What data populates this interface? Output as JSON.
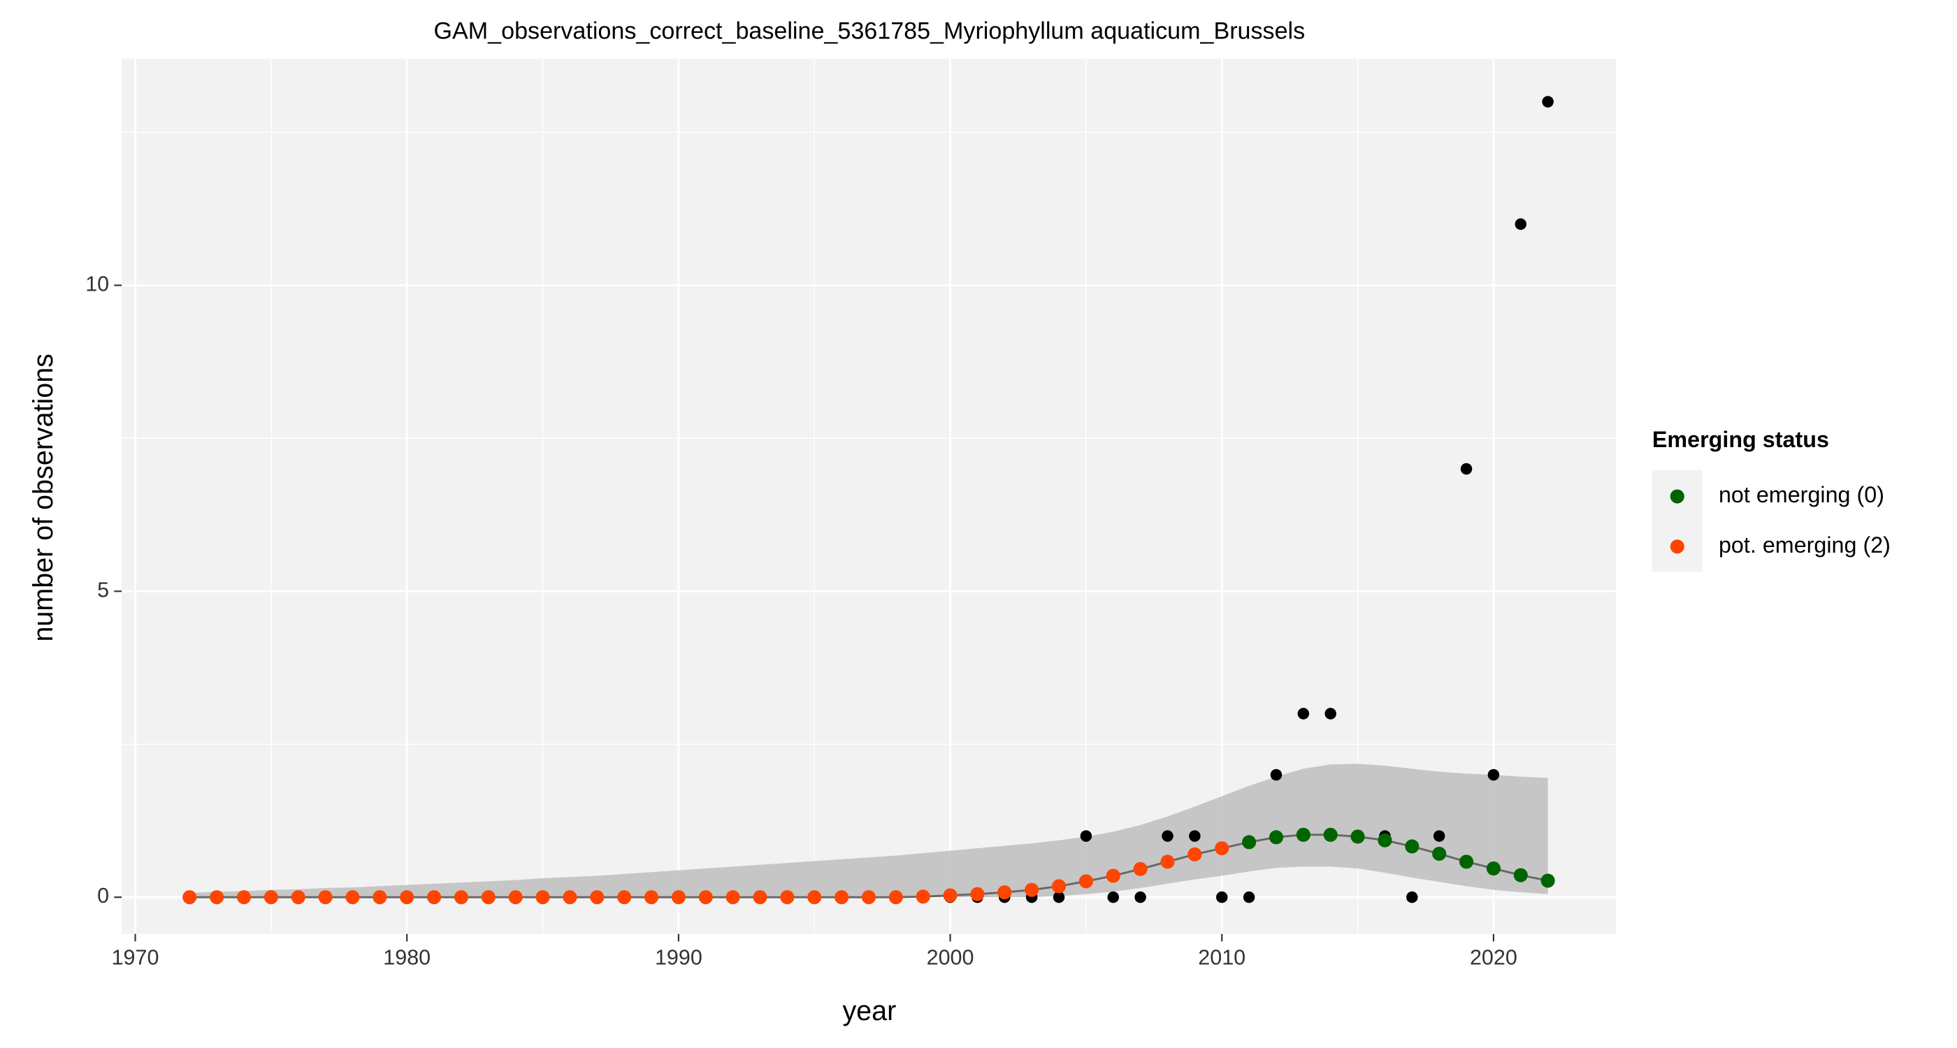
{
  "chart_data": {
    "type": "scatter",
    "title": "GAM_observations_correct_baseline_5361785_Myriophyllum aquaticum_Brussels",
    "x_label": "year",
    "y_label": "number of observations",
    "legend_title": "Emerging status",
    "legend_position": "right",
    "grid": true,
    "xlim": [
      1969.5,
      2024.5
    ],
    "ylim": [
      -0.6,
      13.7
    ],
    "xticks": [
      1970,
      1980,
      1990,
      2000,
      2010,
      2020
    ],
    "yticks": [
      0,
      5,
      10
    ],
    "x": [
      1972,
      1973,
      1974,
      1975,
      1976,
      1977,
      1978,
      1979,
      1980,
      1981,
      1982,
      1983,
      1984,
      1985,
      1986,
      1987,
      1988,
      1989,
      1990,
      1991,
      1992,
      1993,
      1994,
      1995,
      1996,
      1997,
      1998,
      1999,
      2000,
      2001,
      2002,
      2003,
      2004,
      2005,
      2006,
      2007,
      2008,
      2009,
      2010,
      2011,
      2012,
      2013,
      2014,
      2015,
      2016,
      2017,
      2018,
      2019,
      2020,
      2021,
      2022
    ],
    "observed_color": "#000000",
    "observed": [
      0,
      0,
      0,
      0,
      0,
      0,
      0,
      0,
      0,
      0,
      0,
      0,
      0,
      0,
      0,
      0,
      0,
      0,
      0,
      0,
      0,
      0,
      0,
      0,
      0,
      0,
      0,
      0,
      0,
      0,
      0,
      0,
      0,
      1,
      0,
      0,
      1,
      1,
      0,
      0,
      2,
      3,
      3,
      1,
      1,
      0,
      1,
      7,
      2,
      11,
      13
    ],
    "band_color": "#bebebe",
    "band_lower": [
      0,
      0,
      0,
      0,
      0,
      0,
      0,
      0,
      0,
      0,
      0,
      0,
      0,
      0,
      0,
      0,
      0,
      0,
      0,
      0,
      0,
      0,
      0,
      0,
      0,
      0,
      0,
      0,
      0,
      0,
      0,
      0,
      0.02,
      0.05,
      0.09,
      0.15,
      0.22,
      0.29,
      0.35,
      0.42,
      0.48,
      0.5,
      0.5,
      0.47,
      0.4,
      0.32,
      0.25,
      0.18,
      0.12,
      0.08,
      0.05
    ],
    "band_upper": [
      0.07,
      0.09,
      0.1,
      0.12,
      0.13,
      0.15,
      0.16,
      0.18,
      0.2,
      0.22,
      0.24,
      0.26,
      0.28,
      0.31,
      0.33,
      0.35,
      0.38,
      0.41,
      0.44,
      0.47,
      0.5,
      0.53,
      0.56,
      0.59,
      0.62,
      0.65,
      0.68,
      0.72,
      0.76,
      0.8,
      0.84,
      0.88,
      0.93,
      0.99,
      1.07,
      1.18,
      1.32,
      1.48,
      1.65,
      1.82,
      1.97,
      2.1,
      2.17,
      2.18,
      2.15,
      2.1,
      2.05,
      2.02,
      2.0,
      1.97,
      1.95
    ],
    "line_color": "#666666",
    "series": [
      {
        "name": "not emerging (0)",
        "color": "#006400",
        "values": [
          null,
          null,
          null,
          null,
          null,
          null,
          null,
          null,
          null,
          null,
          null,
          null,
          null,
          null,
          null,
          null,
          null,
          null,
          null,
          null,
          null,
          null,
          null,
          null,
          null,
          null,
          null,
          null,
          null,
          null,
          null,
          null,
          null,
          null,
          null,
          null,
          null,
          null,
          null,
          0.9,
          0.98,
          1.02,
          1.02,
          0.99,
          0.93,
          0.83,
          0.71,
          0.58,
          0.47,
          0.36,
          0.27
        ]
      },
      {
        "name": "pot. emerging (2)",
        "color": "#ff4500",
        "values": [
          0,
          0,
          0,
          0,
          0,
          0,
          0,
          0,
          0,
          0,
          0,
          0,
          0,
          0,
          0,
          0,
          0,
          0,
          0,
          0,
          0,
          0,
          0,
          0,
          0,
          0,
          0,
          0.01,
          0.03,
          0.05,
          0.08,
          0.12,
          0.18,
          0.26,
          0.35,
          0.46,
          0.58,
          0.7,
          0.8,
          null,
          null,
          null,
          null,
          null,
          null,
          null,
          null,
          null,
          null,
          null,
          null
        ]
      }
    ]
  }
}
